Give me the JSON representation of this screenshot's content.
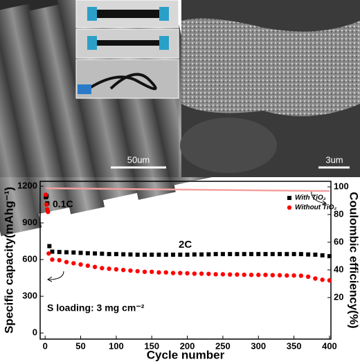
{
  "images": [
    {
      "scale_bar": "50um"
    },
    {
      "scale_bar": "3um"
    }
  ],
  "chart_data": {
    "type": "scatter",
    "xlabel": "Cycle number",
    "ylabel": "Specific capacity(mAhg⁻¹)",
    "y2label": "Coulombic efficiency(%)",
    "annotations": [
      "0.1C",
      "2C",
      "S loading: 3 mg cm⁻²"
    ],
    "xlim": [
      -7,
      402
    ],
    "xticks": [
      0,
      50,
      100,
      150,
      200,
      250,
      300,
      350,
      400
    ],
    "ylim": [
      -50,
      1240
    ],
    "yticks": [
      0,
      300,
      600,
      900,
      1200
    ],
    "y2lim": [
      -10,
      104
    ],
    "y2ticks": [
      20,
      40,
      60,
      80,
      100
    ],
    "legend": "upper right",
    "series": [
      {
        "name": "With TiO₂",
        "color": "#000000",
        "marker": "square",
        "x": [
          1,
          2,
          3,
          6,
          10,
          20,
          30,
          40,
          50,
          60,
          70,
          80,
          90,
          100,
          110,
          120,
          130,
          140,
          150,
          160,
          170,
          180,
          190,
          200,
          210,
          220,
          230,
          240,
          250,
          260,
          270,
          280,
          290,
          300,
          310,
          320,
          330,
          340,
          350,
          360,
          370,
          380,
          390,
          400
        ],
        "values": [
          1110,
          1120,
          1060,
          710,
          665,
          662,
          660,
          658,
          655,
          652,
          650,
          648,
          645,
          645,
          643,
          642,
          640,
          640,
          640,
          640,
          640,
          640,
          640,
          640,
          642,
          642,
          643,
          645,
          645,
          645,
          645,
          645,
          645,
          645,
          645,
          645,
          645,
          645,
          645,
          645,
          642,
          640,
          635,
          628
        ]
      },
      {
        "name": "Without TiO₂",
        "color": "#ff0000",
        "marker": "circle",
        "x": [
          1,
          2,
          3,
          4,
          5,
          10,
          20,
          30,
          40,
          50,
          60,
          70,
          80,
          90,
          100,
          110,
          120,
          130,
          140,
          150,
          160,
          170,
          180,
          190,
          200,
          210,
          220,
          230,
          240,
          250,
          260,
          270,
          280,
          290,
          300,
          310,
          320,
          330,
          340,
          350,
          360,
          370,
          380,
          390,
          400
        ],
        "values": [
          1130,
          1050,
          1010,
          990,
          650,
          600,
          595,
          580,
          570,
          560,
          550,
          540,
          530,
          525,
          520,
          515,
          510,
          505,
          500,
          500,
          495,
          495,
          490,
          490,
          488,
          485,
          485,
          483,
          480,
          480,
          478,
          478,
          476,
          475,
          475,
          475,
          473,
          472,
          470,
          470,
          468,
          460,
          445,
          435,
          430
        ]
      },
      {
        "color": "#f4a0a0",
        "mode": "line",
        "axis": "y2",
        "x": [
          1,
          400
        ],
        "values": [
          99,
          97
        ]
      }
    ]
  }
}
